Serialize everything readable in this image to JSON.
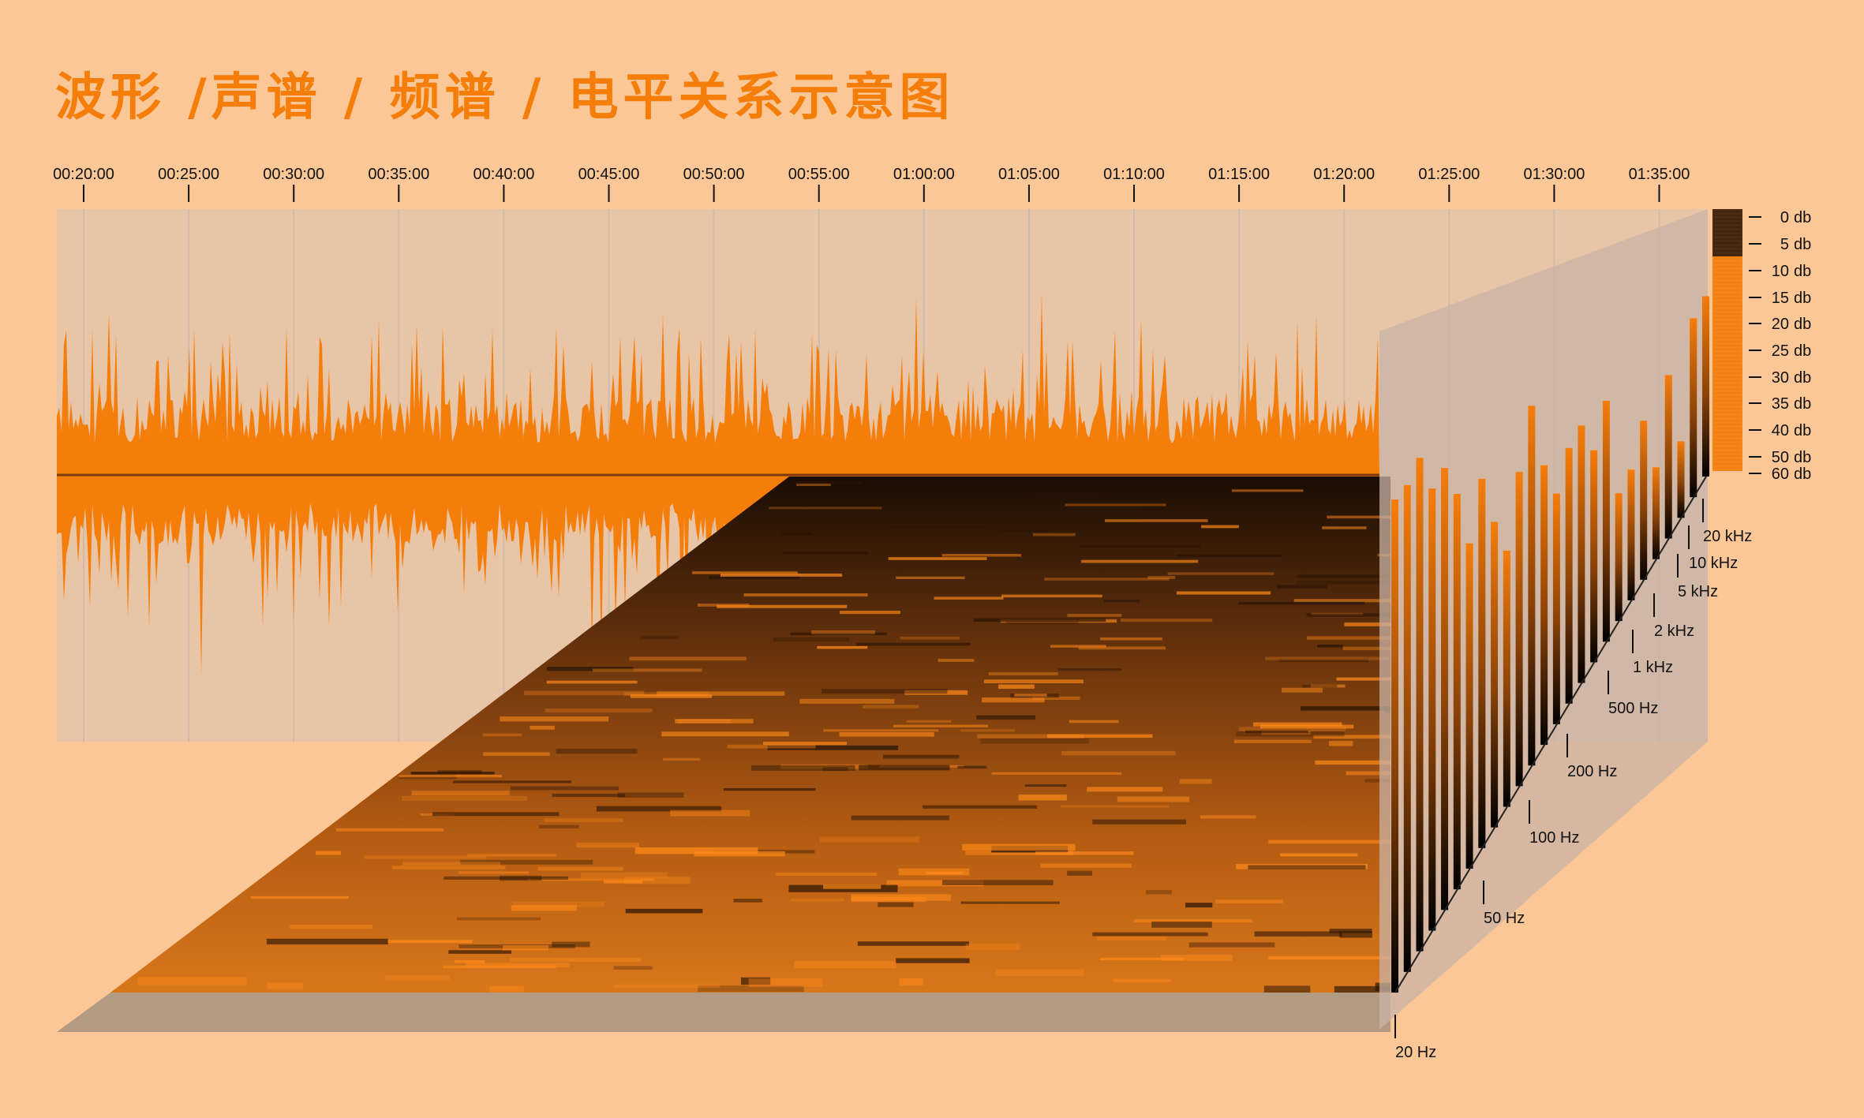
{
  "title": "波形 /声谱 / 频谱 / 电平关系示意图",
  "time_axis": {
    "ticks": [
      "00:20:00",
      "00:25:00",
      "00:30:00",
      "00:35:00",
      "00:40:00",
      "00:45:00",
      "00:50:00",
      "00:55:00",
      "01:00:00",
      "01:05:00",
      "01:10:00",
      "01:15:00",
      "01:20:00",
      "01:25:00",
      "01:30:00",
      "01:35:00"
    ]
  },
  "level_scale": {
    "numbers": [
      "0",
      "5",
      "10",
      "15",
      "20",
      "25",
      "30",
      "35",
      "40",
      "50",
      "60"
    ],
    "unit": "db"
  },
  "frequency_axis": {
    "ticks": [
      "20 Hz",
      "50 Hz",
      "100 Hz",
      "200 Hz",
      "500 Hz",
      "1 kHz",
      "2 kHz",
      "5 kHz",
      "10 kHz",
      "20 kHz"
    ]
  },
  "colors": {
    "background": "#fcc796",
    "accent": "#f57d0a",
    "panel": "#e8c5a6",
    "floor_shadow": "#b29a83"
  }
}
